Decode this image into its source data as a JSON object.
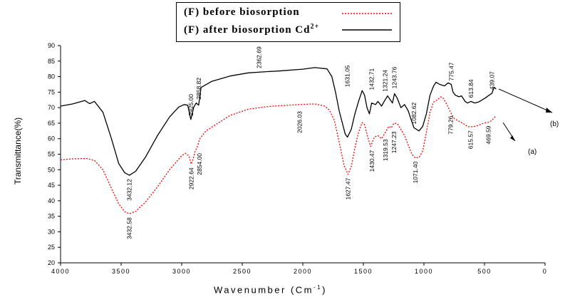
{
  "legend": {
    "before_text": "(F) before biosorption",
    "after_text": "(F) after biosorption Cd",
    "after_superscript": "2+"
  },
  "axes": {
    "xlabel_text": "Wavenumber (Cm",
    "xlabel_superscript": "-1",
    "xlabel_close": ")",
    "ylabel": "Transmittance(%)"
  },
  "colors": {
    "after": "#000000",
    "before": "#ff0000"
  },
  "chart_data": {
    "type": "line",
    "xlim": [
      4000,
      0
    ],
    "ylim": [
      20,
      90
    ],
    "x_ticks": [
      4000,
      3500,
      3000,
      2500,
      2000,
      1500,
      1000,
      500,
      0
    ],
    "y_ticks": [
      20,
      25,
      30,
      35,
      40,
      45,
      50,
      55,
      60,
      65,
      70,
      75,
      80,
      85,
      90
    ],
    "grid": false,
    "series": [
      {
        "name": "(F) after biosorption Cd2+",
        "color": "#000000",
        "dash": "solid",
        "curve_label": "(b)",
        "points": [
          [
            4000,
            70.5
          ],
          [
            3900,
            71.2
          ],
          [
            3800,
            72.3
          ],
          [
            3760,
            71.3
          ],
          [
            3720,
            72.0
          ],
          [
            3650,
            68.5
          ],
          [
            3580,
            60
          ],
          [
            3520,
            52
          ],
          [
            3470,
            49
          ],
          [
            3432,
            48.2
          ],
          [
            3380,
            49.5
          ],
          [
            3300,
            54
          ],
          [
            3200,
            61
          ],
          [
            3100,
            67
          ],
          [
            3025,
            70.2
          ],
          [
            2980,
            71
          ],
          [
            2950,
            70.8
          ],
          [
            2925,
            66.2
          ],
          [
            2900,
            70.2
          ],
          [
            2880,
            71.5
          ],
          [
            2860,
            70.8
          ],
          [
            2840,
            76.5
          ],
          [
            2750,
            78.5
          ],
          [
            2600,
            80.2
          ],
          [
            2450,
            81.2
          ],
          [
            2300,
            81.6
          ],
          [
            2200,
            81.8
          ],
          [
            2000,
            82.4
          ],
          [
            1900,
            82.9
          ],
          [
            1800,
            82.5
          ],
          [
            1760,
            80
          ],
          [
            1730,
            75
          ],
          [
            1700,
            69
          ],
          [
            1650,
            61.5
          ],
          [
            1631,
            60.5
          ],
          [
            1600,
            63
          ],
          [
            1570,
            68
          ],
          [
            1540,
            72
          ],
          [
            1510,
            75.5
          ],
          [
            1490,
            74
          ],
          [
            1470,
            70
          ],
          [
            1450,
            68
          ],
          [
            1432,
            71.5
          ],
          [
            1400,
            71
          ],
          [
            1380,
            72
          ],
          [
            1350,
            70.5
          ],
          [
            1321,
            72.5
          ],
          [
            1300,
            73.8
          ],
          [
            1260,
            71.5
          ],
          [
            1243,
            74.5
          ],
          [
            1220,
            73
          ],
          [
            1190,
            70
          ],
          [
            1160,
            71
          ],
          [
            1130,
            69
          ],
          [
            1100,
            65.5
          ],
          [
            1082,
            63.5
          ],
          [
            1040,
            62.5
          ],
          [
            1010,
            64
          ],
          [
            980,
            68
          ],
          [
            950,
            74
          ],
          [
            920,
            77
          ],
          [
            900,
            78.2
          ],
          [
            870,
            77.5
          ],
          [
            830,
            77
          ],
          [
            800,
            78
          ],
          [
            775,
            77.5
          ],
          [
            760,
            75
          ],
          [
            740,
            74
          ],
          [
            710,
            73.5
          ],
          [
            690,
            73.8
          ],
          [
            660,
            72
          ],
          [
            640,
            71.5
          ],
          [
            613,
            72
          ],
          [
            580,
            71.5
          ],
          [
            550,
            71.8
          ],
          [
            520,
            72.5
          ],
          [
            490,
            73.2
          ],
          [
            470,
            73.8
          ],
          [
            439,
            74.6
          ],
          [
            420,
            76.6
          ],
          [
            405,
            76
          ]
        ]
      },
      {
        "name": "(F) before biosorption",
        "color": "#ff0000",
        "dash": "dotted",
        "curve_label": "(a)",
        "points": [
          [
            4000,
            53.2
          ],
          [
            3900,
            53.5
          ],
          [
            3780,
            53.6
          ],
          [
            3720,
            53
          ],
          [
            3650,
            50
          ],
          [
            3580,
            44
          ],
          [
            3520,
            39
          ],
          [
            3470,
            36.5
          ],
          [
            3432,
            35.8
          ],
          [
            3380,
            36.6
          ],
          [
            3300,
            39.5
          ],
          [
            3200,
            44.5
          ],
          [
            3100,
            50
          ],
          [
            3000,
            54.5
          ],
          [
            2970,
            55.3
          ],
          [
            2940,
            54.5
          ],
          [
            2922,
            51.8
          ],
          [
            2905,
            53.5
          ],
          [
            2890,
            55.8
          ],
          [
            2870,
            57.5
          ],
          [
            2850,
            60
          ],
          [
            2800,
            62.5
          ],
          [
            2700,
            65
          ],
          [
            2600,
            67.5
          ],
          [
            2450,
            69.5
          ],
          [
            2300,
            70.3
          ],
          [
            2200,
            70.6
          ],
          [
            2026,
            71
          ],
          [
            1900,
            71.2
          ],
          [
            1820,
            70.5
          ],
          [
            1780,
            69.2
          ],
          [
            1740,
            66
          ],
          [
            1700,
            59
          ],
          [
            1660,
            51.5
          ],
          [
            1627,
            48.5
          ],
          [
            1600,
            51
          ],
          [
            1570,
            57
          ],
          [
            1540,
            62
          ],
          [
            1510,
            65.2
          ],
          [
            1490,
            64.5
          ],
          [
            1460,
            60
          ],
          [
            1440,
            57.5
          ],
          [
            1410,
            60.5
          ],
          [
            1380,
            61
          ],
          [
            1350,
            60
          ],
          [
            1319,
            62
          ],
          [
            1290,
            64
          ],
          [
            1270,
            63.5
          ],
          [
            1247,
            65
          ],
          [
            1220,
            64.8
          ],
          [
            1190,
            63
          ],
          [
            1160,
            61
          ],
          [
            1130,
            58
          ],
          [
            1100,
            55
          ],
          [
            1071,
            53.8
          ],
          [
            1040,
            54
          ],
          [
            1010,
            56
          ],
          [
            980,
            62
          ],
          [
            950,
            68.5
          ],
          [
            920,
            71.8
          ],
          [
            890,
            72.5
          ],
          [
            860,
            73.5
          ],
          [
            840,
            73
          ],
          [
            810,
            71
          ],
          [
            780,
            68.5
          ],
          [
            750,
            66.5
          ],
          [
            720,
            65.8
          ],
          [
            680,
            65
          ],
          [
            640,
            64
          ],
          [
            615,
            63.8
          ],
          [
            580,
            64
          ],
          [
            550,
            64.3
          ],
          [
            520,
            64.8
          ],
          [
            490,
            65.2
          ],
          [
            469,
            65.3
          ],
          [
            440,
            65.8
          ],
          [
            415,
            67
          ],
          [
            405,
            66.7
          ]
        ]
      }
    ],
    "annotations": [
      {
        "text": "3432.12",
        "x": 3432,
        "y": 48.2,
        "series": "after",
        "side": "below"
      },
      {
        "text": "2925.00",
        "x": 2925,
        "y": 66.2,
        "series": "after",
        "side": "above"
      },
      {
        "text": "2858.82",
        "x": 2858,
        "y": 71.5,
        "series": "after",
        "side": "above"
      },
      {
        "text": "2362.69",
        "x": 2362,
        "y": 81.5,
        "series": "after",
        "side": "above"
      },
      {
        "text": "1631.05",
        "x": 1631,
        "y": 75.5,
        "series": "after",
        "side": "above"
      },
      {
        "text": "1432.71",
        "x": 1432,
        "y": 74.5,
        "series": "after",
        "side": "above"
      },
      {
        "text": "1321.24",
        "x": 1321,
        "y": 74,
        "series": "after",
        "side": "above"
      },
      {
        "text": "1243.76",
        "x": 1243,
        "y": 75,
        "series": "after",
        "side": "above"
      },
      {
        "text": "1082.62",
        "x": 1082,
        "y": 63.5,
        "series": "after",
        "side": "above"
      },
      {
        "text": "775.47",
        "x": 775,
        "y": 77.5,
        "series": "after",
        "side": "above"
      },
      {
        "text": "613.84",
        "x": 613,
        "y": 72,
        "series": "after",
        "side": "above"
      },
      {
        "text": "439.07",
        "x": 439,
        "y": 74.6,
        "series": "after",
        "side": "above"
      },
      {
        "text": "3432.58",
        "x": 3432,
        "y": 35.8,
        "series": "before",
        "side": "below"
      },
      {
        "text": "2922.64",
        "x": 2922,
        "y": 51.8,
        "series": "before",
        "side": "below"
      },
      {
        "text": "2854.00",
        "x": 2854,
        "y": 56.5,
        "series": "before",
        "side": "below"
      },
      {
        "text": "2026.03",
        "x": 2026,
        "y": 70,
        "series": "before",
        "side": "below"
      },
      {
        "text": "1627.47",
        "x": 1627,
        "y": 48.5,
        "series": "before",
        "side": "below"
      },
      {
        "text": "1430.47",
        "x": 1430,
        "y": 57.5,
        "series": "before",
        "side": "below"
      },
      {
        "text": "1319.53",
        "x": 1319,
        "y": 61,
        "series": "before",
        "side": "below"
      },
      {
        "text": "1247.23",
        "x": 1247,
        "y": 63.5,
        "series": "before",
        "side": "below"
      },
      {
        "text": "1071.40",
        "x": 1071,
        "y": 53.8,
        "series": "before",
        "side": "below"
      },
      {
        "text": "779.26",
        "x": 779,
        "y": 68.5,
        "series": "before",
        "side": "below"
      },
      {
        "text": "615.57",
        "x": 615,
        "y": 63.8,
        "series": "before",
        "side": "below"
      },
      {
        "text": "469.59",
        "x": 469,
        "y": 65.3,
        "series": "before",
        "side": "below"
      }
    ]
  }
}
